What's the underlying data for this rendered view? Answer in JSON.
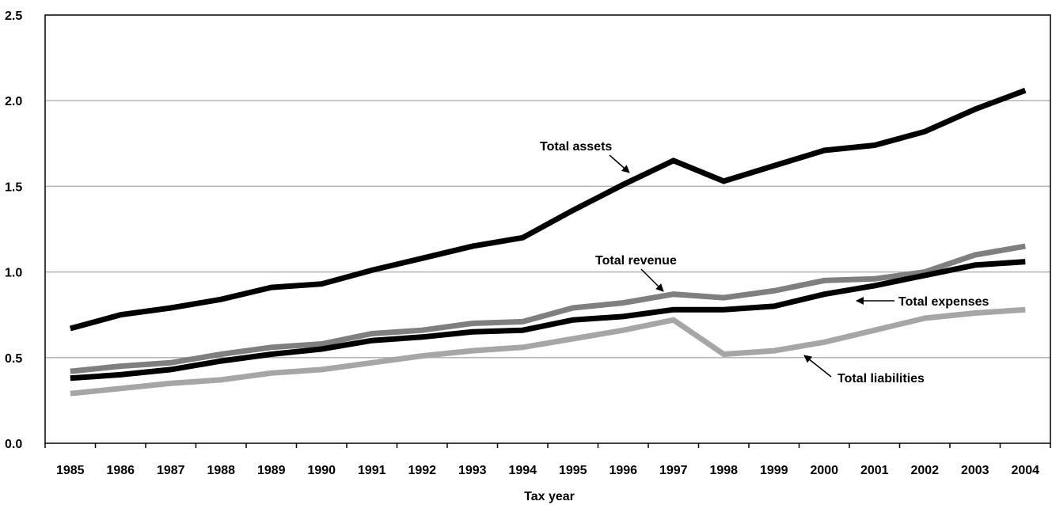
{
  "chart_data": {
    "type": "line",
    "xlabel": "Tax year",
    "ylabel": "",
    "ylim": [
      0,
      2.5
    ],
    "yticks": [
      "0.0",
      "0.5",
      "1.0",
      "1.5",
      "2.0",
      "2.5"
    ],
    "grid": true,
    "legend": "none (series labeled by arrow annotations)",
    "categories": [
      "1985",
      "1986",
      "1987",
      "1988",
      "1989",
      "1990",
      "1991",
      "1992",
      "1993",
      "1994",
      "1995",
      "1996",
      "1997",
      "1998",
      "1999",
      "2000",
      "2001",
      "2002",
      "2003",
      "2004"
    ],
    "series": [
      {
        "name": "Total assets",
        "color": "#000000",
        "values": [
          0.67,
          0.75,
          0.79,
          0.84,
          0.91,
          0.93,
          1.01,
          1.08,
          1.15,
          1.2,
          1.36,
          1.51,
          1.65,
          1.53,
          1.62,
          1.71,
          1.74,
          1.82,
          1.95,
          2.06
        ]
      },
      {
        "name": "Total revenue",
        "color": "#7f7f7f",
        "values": [
          0.42,
          0.45,
          0.47,
          0.52,
          0.56,
          0.58,
          0.64,
          0.66,
          0.7,
          0.71,
          0.79,
          0.82,
          0.87,
          0.85,
          0.89,
          0.95,
          0.96,
          1.0,
          1.1,
          1.15
        ]
      },
      {
        "name": "Total expenses",
        "color": "#000000",
        "values": [
          0.38,
          0.4,
          0.43,
          0.48,
          0.52,
          0.55,
          0.6,
          0.62,
          0.65,
          0.66,
          0.72,
          0.74,
          0.78,
          0.78,
          0.8,
          0.87,
          0.92,
          0.98,
          1.04,
          1.06
        ]
      },
      {
        "name": "Total liabilities",
        "color": "#a6a6a6",
        "values": [
          0.29,
          0.32,
          0.35,
          0.37,
          0.41,
          0.43,
          0.47,
          0.51,
          0.54,
          0.56,
          0.61,
          0.66,
          0.72,
          0.52,
          0.54,
          0.59,
          0.66,
          0.73,
          0.76,
          0.78
        ]
      }
    ],
    "annotations": [
      {
        "text": "Total assets",
        "series": "Total assets",
        "point_year": "1996"
      },
      {
        "text": "Total revenue",
        "series": "Total revenue",
        "point_year": "1997"
      },
      {
        "text": "Total expenses",
        "series": "Total expenses",
        "point_year": "2001"
      },
      {
        "text": "Total liabilities",
        "series": "Total liabilities",
        "point_year": "1999"
      }
    ]
  }
}
